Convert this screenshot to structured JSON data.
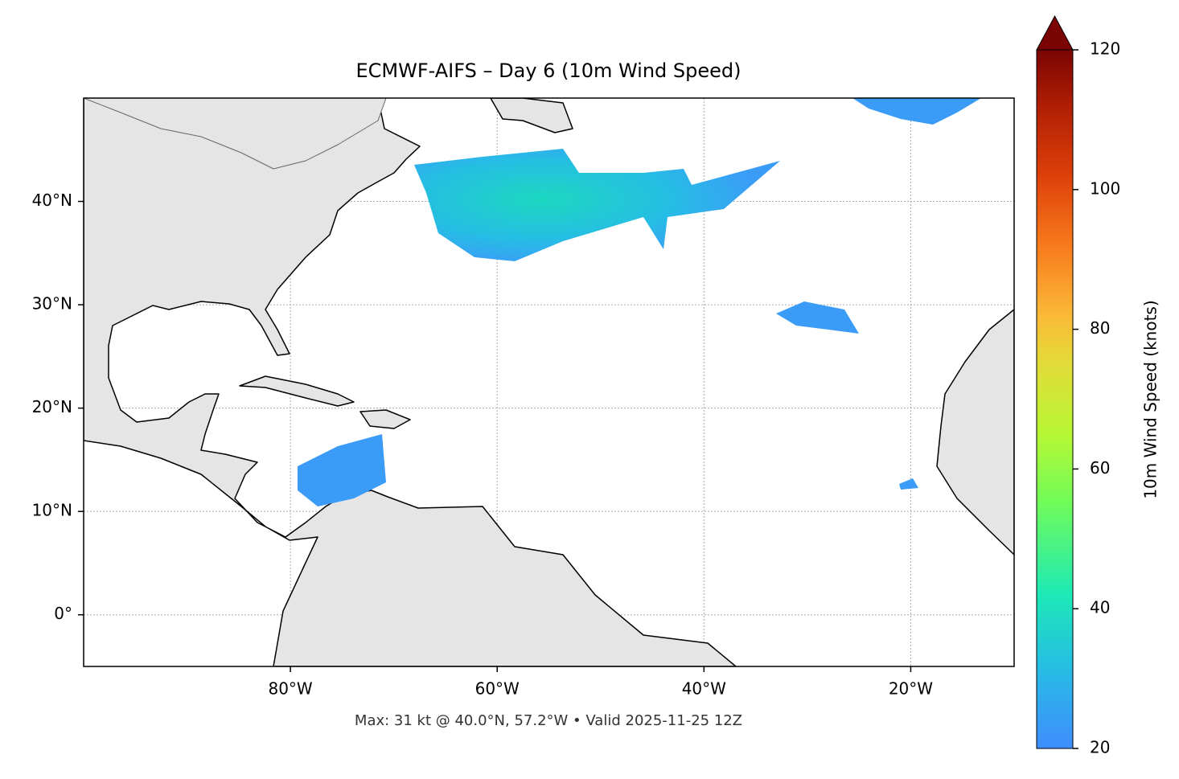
{
  "chart_data": {
    "type": "map",
    "title": "ECMWF-AIFS – Day 6 (10m Wind Speed)",
    "footnote": "Max: 31 kt @ 40.0°N, 57.2°W • Valid 2025-11-25 12Z",
    "xlim": [
      -100,
      -10
    ],
    "ylim": [
      -5,
      50
    ],
    "xticks": [
      {
        "value": -80,
        "label": "80°W"
      },
      {
        "value": -60,
        "label": "60°W"
      },
      {
        "value": -40,
        "label": "40°W"
      },
      {
        "value": -20,
        "label": "20°W"
      }
    ],
    "yticks": [
      {
        "value": 0,
        "label": "0°"
      },
      {
        "value": 10,
        "label": "10°N"
      },
      {
        "value": 20,
        "label": "20°N"
      },
      {
        "value": 30,
        "label": "30°N"
      },
      {
        "value": 40,
        "label": "40°N"
      }
    ],
    "grid": true,
    "colorbar": {
      "label": "10m Wind Speed (knots)",
      "lim": [
        20,
        120
      ],
      "ticks": [
        20,
        40,
        60,
        80,
        100,
        120
      ]
    }
  }
}
